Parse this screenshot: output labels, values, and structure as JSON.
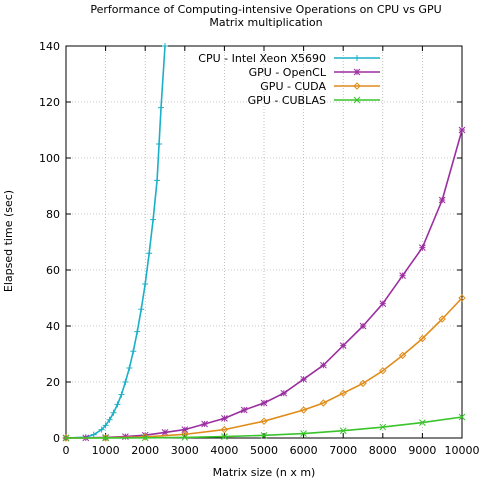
{
  "chart_data": {
    "type": "line",
    "title_line1": "Performance of Computing-intensive Operations on CPU vs GPU",
    "title_line2": "Matrix multiplication",
    "xlabel": "Matrix size (n x m)",
    "ylabel": "Elapsed time (sec)",
    "xlim": [
      0,
      10000
    ],
    "ylim": [
      0,
      140
    ],
    "xticks": [
      0,
      1000,
      2000,
      3000,
      4000,
      5000,
      6000,
      7000,
      8000,
      9000,
      10000
    ],
    "yticks": [
      0,
      20,
      40,
      60,
      80,
      100,
      120,
      140
    ],
    "grid": true,
    "legend_position": "top-right",
    "series": [
      {
        "name": "CPU - Intel Xeon X5690",
        "color": "#1ab0c8",
        "marker": "plus",
        "x": [
          0,
          500,
          700,
          900,
          1000,
          1100,
          1200,
          1300,
          1400,
          1500,
          1600,
          1700,
          1800,
          1900,
          2000,
          2100,
          2200,
          2300,
          2350,
          2400,
          2500
        ],
        "y": [
          0,
          0.3,
          1.2,
          3,
          4.5,
          6.5,
          9,
          12,
          15.5,
          20,
          25,
          31,
          38,
          46,
          55,
          66,
          78,
          92,
          105,
          118,
          140
        ]
      },
      {
        "name": "GPU - OpenCL",
        "color": "#9b2fa0",
        "marker": "star",
        "x": [
          0,
          500,
          1000,
          1500,
          2000,
          2500,
          3000,
          3500,
          4000,
          4500,
          5000,
          5500,
          6000,
          6500,
          7000,
          7500,
          8000,
          8500,
          9000,
          9500,
          10000
        ],
        "y": [
          0,
          0.05,
          0.2,
          0.5,
          1,
          2,
          3,
          5,
          7,
          10,
          12.5,
          16,
          21,
          26,
          33,
          40,
          48,
          58,
          68,
          85,
          110
        ]
      },
      {
        "name": "GPU - CUDA",
        "color": "#e08c1a",
        "marker": "diamond",
        "x": [
          0,
          1000,
          2000,
          3000,
          4000,
          5000,
          6000,
          6500,
          7000,
          7500,
          8000,
          8500,
          9000,
          9500,
          10000
        ],
        "y": [
          0,
          0.05,
          0.4,
          1.3,
          3,
          6,
          10,
          12.5,
          16,
          19.5,
          24,
          29.5,
          35.5,
          42.5,
          50
        ]
      },
      {
        "name": "GPU - CUBLAS",
        "color": "#39c42a",
        "marker": "x",
        "x": [
          0,
          1000,
          2000,
          3000,
          4000,
          5000,
          6000,
          7000,
          8000,
          9000,
          10000
        ],
        "y": [
          0,
          0.01,
          0.06,
          0.2,
          0.5,
          0.95,
          1.6,
          2.6,
          3.9,
          5.5,
          7.5
        ]
      }
    ]
  }
}
